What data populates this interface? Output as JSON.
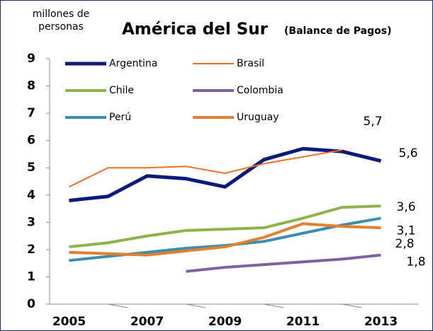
{
  "chart_data": {
    "type": "line",
    "title": "América del Sur",
    "subtitle": "(Balance de Pagos)",
    "ylabel_lines": [
      "millones de",
      "personas"
    ],
    "categories": [
      "2005",
      null,
      "2007",
      null,
      "2009",
      null,
      "2011",
      null,
      "2013"
    ],
    "ylim": [
      0,
      9
    ],
    "yticks": [
      0,
      1,
      2,
      3,
      4,
      5,
      6,
      7,
      8,
      9
    ],
    "series": [
      {
        "name": "Argentina",
        "color": "#0b1a7a",
        "values": [
          3.8,
          3.95,
          4.7,
          4.6,
          4.3,
          5.3,
          5.7,
          5.6,
          5.25
        ],
        "value_labels": [
          null,
          null,
          null,
          null,
          null,
          null,
          null,
          "5,6",
          null
        ]
      },
      {
        "name": "Brasil",
        "color": "#f07020",
        "values": [
          4.3,
          5.0,
          5.0,
          5.05,
          4.8,
          5.15,
          5.4,
          5.65,
          null
        ],
        "value_labels": [
          null,
          null,
          null,
          null,
          null,
          null,
          null,
          "5,7",
          null
        ]
      },
      {
        "name": "Chile",
        "color": "#8db34a",
        "values": [
          2.1,
          2.25,
          2.5,
          2.7,
          2.75,
          2.8,
          3.15,
          3.55,
          3.6
        ],
        "value_labels": [
          null,
          null,
          null,
          null,
          null,
          null,
          null,
          null,
          "3,6"
        ]
      },
      {
        "name": "Colombia",
        "color": "#8060a0",
        "values": [
          null,
          null,
          null,
          1.2,
          1.35,
          1.45,
          1.55,
          1.65,
          1.8
        ],
        "value_labels": [
          null,
          null,
          null,
          null,
          null,
          null,
          null,
          null,
          "1,8"
        ]
      },
      {
        "name": "Perú",
        "color": "#3a8fb0",
        "values": [
          1.6,
          1.75,
          1.9,
          2.05,
          2.15,
          2.3,
          2.6,
          2.9,
          3.15
        ],
        "value_labels": [
          null,
          null,
          null,
          null,
          null,
          null,
          null,
          null,
          "3,1"
        ]
      },
      {
        "name": "Uruguay",
        "color": "#e08030",
        "values": [
          1.9,
          1.85,
          1.8,
          1.95,
          2.1,
          2.45,
          2.95,
          2.85,
          2.8
        ],
        "value_labels": [
          null,
          null,
          null,
          null,
          null,
          null,
          null,
          null,
          "2,8"
        ]
      }
    ]
  }
}
